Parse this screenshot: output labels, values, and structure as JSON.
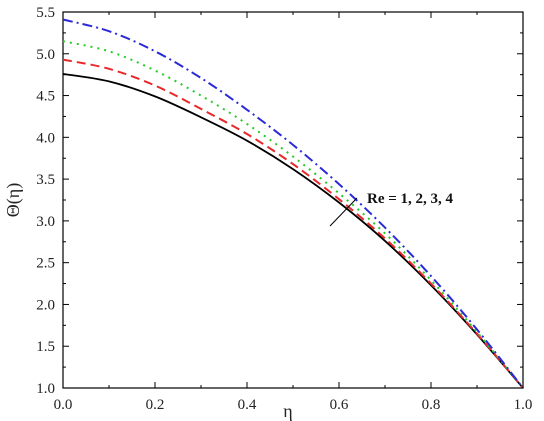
{
  "chart_data": {
    "type": "line",
    "xlabel": "η",
    "ylabel": "Θ(η)",
    "xlim": [
      0.0,
      1.0
    ],
    "ylim": [
      1.0,
      5.5
    ],
    "xticks": [
      "0.0",
      "0.2",
      "0.4",
      "0.6",
      "0.8",
      "1.0"
    ],
    "yticks": [
      "1.0",
      "1.5",
      "2.0",
      "2.5",
      "3.0",
      "3.5",
      "4.0",
      "4.5",
      "5.0",
      "5.5"
    ],
    "grid": false,
    "annotation": "Re = 1, 2, 3, 4",
    "x": [
      0.0,
      0.1,
      0.2,
      0.3,
      0.4,
      0.5,
      0.6,
      0.7,
      0.8,
      0.9,
      1.0
    ],
    "series": [
      {
        "values": [
          4.76,
          4.67,
          4.49,
          4.24,
          3.96,
          3.62,
          3.22,
          2.76,
          2.23,
          1.64,
          1.0
        ],
        "color": "#000000",
        "dash": "solid"
      },
      {
        "values": [
          4.93,
          4.82,
          4.62,
          4.34,
          4.04,
          3.68,
          3.26,
          2.79,
          2.25,
          1.65,
          1.0
        ],
        "color": "#e8282a",
        "dash": "dashed"
      },
      {
        "values": [
          5.15,
          5.03,
          4.8,
          4.5,
          4.16,
          3.77,
          3.33,
          2.85,
          2.29,
          1.67,
          1.0
        ],
        "color": "#22cc22",
        "dash": "dotted"
      },
      {
        "values": [
          5.41,
          5.27,
          5.03,
          4.71,
          4.33,
          3.91,
          3.44,
          2.92,
          2.34,
          1.7,
          1.0
        ],
        "color": "#2a2ad8",
        "dash": "dashdot"
      }
    ]
  }
}
